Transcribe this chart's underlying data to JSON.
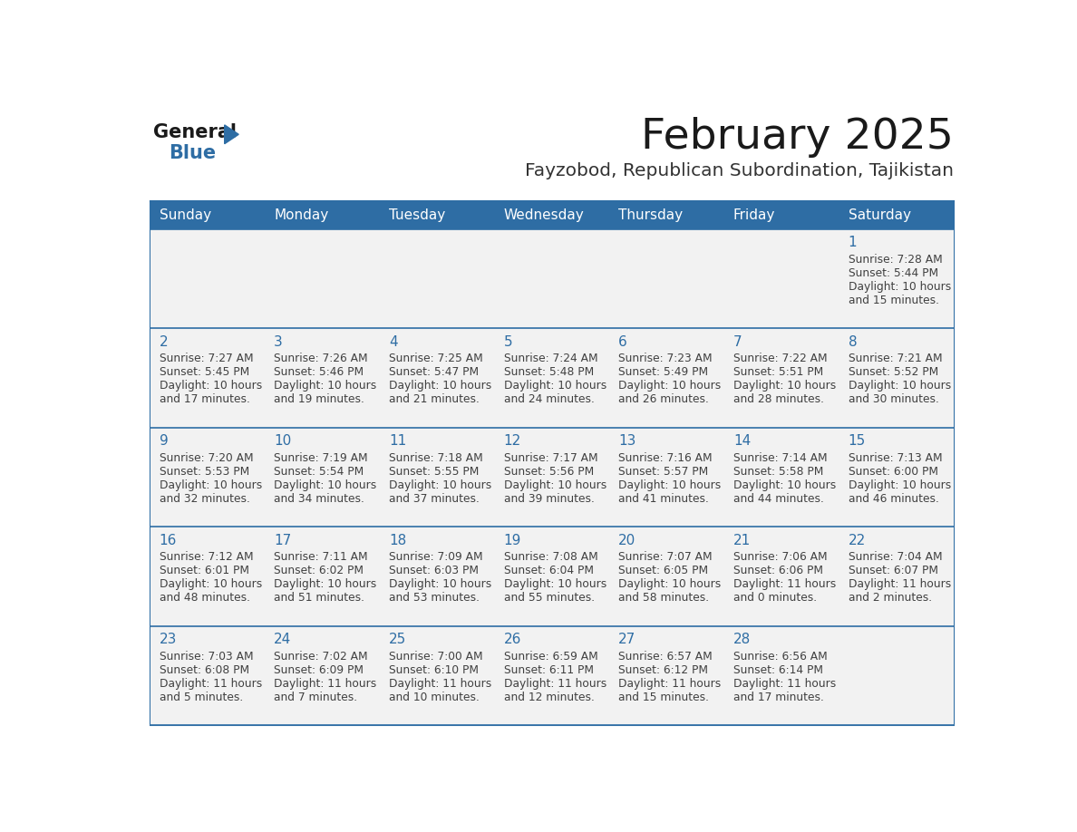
{
  "title": "February 2025",
  "subtitle": "Fayzobod, Republican Subordination, Tajikistan",
  "days_of_week": [
    "Sunday",
    "Monday",
    "Tuesday",
    "Wednesday",
    "Thursday",
    "Friday",
    "Saturday"
  ],
  "header_bg": "#2E6DA4",
  "header_text": "#FFFFFF",
  "row_bg": "#F2F2F2",
  "cell_border": "#2E6DA4",
  "day_number_color": "#2E6DA4",
  "info_text_color": "#404040",
  "title_color": "#1a1a1a",
  "subtitle_color": "#333333",
  "logo_general_color": "#1a1a1a",
  "logo_blue_color": "#2E6DA4",
  "weeks": [
    [
      {
        "day": null,
        "sunrise": null,
        "sunset": null,
        "daylight": null
      },
      {
        "day": null,
        "sunrise": null,
        "sunset": null,
        "daylight": null
      },
      {
        "day": null,
        "sunrise": null,
        "sunset": null,
        "daylight": null
      },
      {
        "day": null,
        "sunrise": null,
        "sunset": null,
        "daylight": null
      },
      {
        "day": null,
        "sunrise": null,
        "sunset": null,
        "daylight": null
      },
      {
        "day": null,
        "sunrise": null,
        "sunset": null,
        "daylight": null
      },
      {
        "day": 1,
        "sunrise": "7:28 AM",
        "sunset": "5:44 PM",
        "daylight": "10 hours\nand 15 minutes."
      }
    ],
    [
      {
        "day": 2,
        "sunrise": "7:27 AM",
        "sunset": "5:45 PM",
        "daylight": "10 hours\nand 17 minutes."
      },
      {
        "day": 3,
        "sunrise": "7:26 AM",
        "sunset": "5:46 PM",
        "daylight": "10 hours\nand 19 minutes."
      },
      {
        "day": 4,
        "sunrise": "7:25 AM",
        "sunset": "5:47 PM",
        "daylight": "10 hours\nand 21 minutes."
      },
      {
        "day": 5,
        "sunrise": "7:24 AM",
        "sunset": "5:48 PM",
        "daylight": "10 hours\nand 24 minutes."
      },
      {
        "day": 6,
        "sunrise": "7:23 AM",
        "sunset": "5:49 PM",
        "daylight": "10 hours\nand 26 minutes."
      },
      {
        "day": 7,
        "sunrise": "7:22 AM",
        "sunset": "5:51 PM",
        "daylight": "10 hours\nand 28 minutes."
      },
      {
        "day": 8,
        "sunrise": "7:21 AM",
        "sunset": "5:52 PM",
        "daylight": "10 hours\nand 30 minutes."
      }
    ],
    [
      {
        "day": 9,
        "sunrise": "7:20 AM",
        "sunset": "5:53 PM",
        "daylight": "10 hours\nand 32 minutes."
      },
      {
        "day": 10,
        "sunrise": "7:19 AM",
        "sunset": "5:54 PM",
        "daylight": "10 hours\nand 34 minutes."
      },
      {
        "day": 11,
        "sunrise": "7:18 AM",
        "sunset": "5:55 PM",
        "daylight": "10 hours\nand 37 minutes."
      },
      {
        "day": 12,
        "sunrise": "7:17 AM",
        "sunset": "5:56 PM",
        "daylight": "10 hours\nand 39 minutes."
      },
      {
        "day": 13,
        "sunrise": "7:16 AM",
        "sunset": "5:57 PM",
        "daylight": "10 hours\nand 41 minutes."
      },
      {
        "day": 14,
        "sunrise": "7:14 AM",
        "sunset": "5:58 PM",
        "daylight": "10 hours\nand 44 minutes."
      },
      {
        "day": 15,
        "sunrise": "7:13 AM",
        "sunset": "6:00 PM",
        "daylight": "10 hours\nand 46 minutes."
      }
    ],
    [
      {
        "day": 16,
        "sunrise": "7:12 AM",
        "sunset": "6:01 PM",
        "daylight": "10 hours\nand 48 minutes."
      },
      {
        "day": 17,
        "sunrise": "7:11 AM",
        "sunset": "6:02 PM",
        "daylight": "10 hours\nand 51 minutes."
      },
      {
        "day": 18,
        "sunrise": "7:09 AM",
        "sunset": "6:03 PM",
        "daylight": "10 hours\nand 53 minutes."
      },
      {
        "day": 19,
        "sunrise": "7:08 AM",
        "sunset": "6:04 PM",
        "daylight": "10 hours\nand 55 minutes."
      },
      {
        "day": 20,
        "sunrise": "7:07 AM",
        "sunset": "6:05 PM",
        "daylight": "10 hours\nand 58 minutes."
      },
      {
        "day": 21,
        "sunrise": "7:06 AM",
        "sunset": "6:06 PM",
        "daylight": "11 hours\nand 0 minutes."
      },
      {
        "day": 22,
        "sunrise": "7:04 AM",
        "sunset": "6:07 PM",
        "daylight": "11 hours\nand 2 minutes."
      }
    ],
    [
      {
        "day": 23,
        "sunrise": "7:03 AM",
        "sunset": "6:08 PM",
        "daylight": "11 hours\nand 5 minutes."
      },
      {
        "day": 24,
        "sunrise": "7:02 AM",
        "sunset": "6:09 PM",
        "daylight": "11 hours\nand 7 minutes."
      },
      {
        "day": 25,
        "sunrise": "7:00 AM",
        "sunset": "6:10 PM",
        "daylight": "11 hours\nand 10 minutes."
      },
      {
        "day": 26,
        "sunrise": "6:59 AM",
        "sunset": "6:11 PM",
        "daylight": "11 hours\nand 12 minutes."
      },
      {
        "day": 27,
        "sunrise": "6:57 AM",
        "sunset": "6:12 PM",
        "daylight": "11 hours\nand 15 minutes."
      },
      {
        "day": 28,
        "sunrise": "6:56 AM",
        "sunset": "6:14 PM",
        "daylight": "11 hours\nand 17 minutes."
      },
      {
        "day": null,
        "sunrise": null,
        "sunset": null,
        "daylight": null
      }
    ]
  ]
}
